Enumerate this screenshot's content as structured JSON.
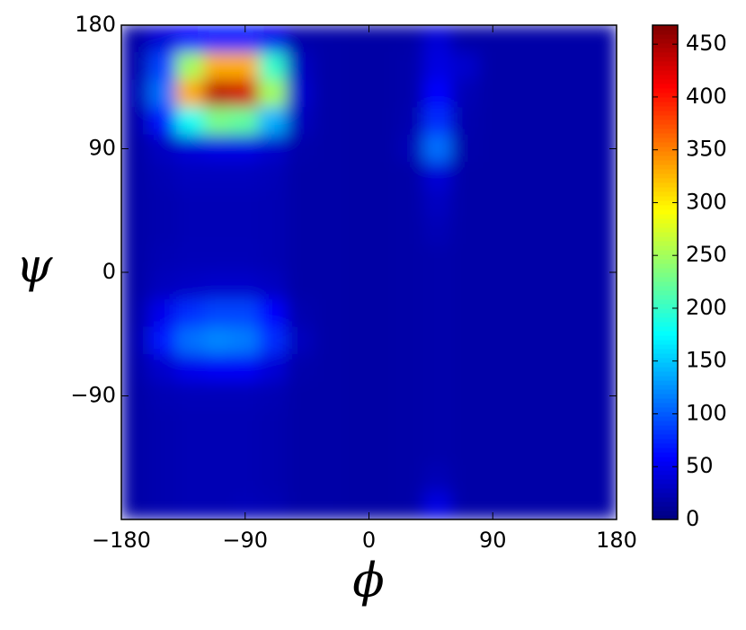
{
  "chart_data": {
    "type": "heatmap",
    "xlabel": "ϕ",
    "ylabel": "ψ",
    "colormap": "jet",
    "x": [
      -170,
      -150,
      -130,
      -110,
      -90,
      -70,
      -50,
      -30,
      -10,
      10,
      30,
      50,
      70,
      90,
      110,
      130,
      150,
      170
    ],
    "y": [
      170,
      150,
      130,
      110,
      90,
      70,
      50,
      30,
      10,
      -10,
      -30,
      -50,
      -70,
      -90,
      -110,
      -130,
      -150,
      -170
    ],
    "values": [
      [
        18,
        40,
        60,
        70,
        70,
        50,
        20,
        18,
        17,
        17,
        18,
        40,
        18,
        18,
        18,
        18,
        18,
        18
      ],
      [
        20,
        90,
        250,
        330,
        330,
        200,
        30,
        18,
        17,
        17,
        20,
        45,
        35,
        18,
        18,
        18,
        18,
        18
      ],
      [
        25,
        110,
        330,
        440,
        430,
        250,
        35,
        18,
        17,
        17,
        20,
        60,
        25,
        18,
        18,
        18,
        18,
        18
      ],
      [
        20,
        70,
        180,
        230,
        220,
        140,
        28,
        18,
        17,
        17,
        22,
        80,
        22,
        18,
        18,
        18,
        18,
        18
      ],
      [
        18,
        30,
        40,
        45,
        45,
        35,
        20,
        18,
        17,
        17,
        25,
        110,
        20,
        18,
        18,
        18,
        18,
        18
      ],
      [
        18,
        24,
        28,
        28,
        28,
        26,
        18,
        18,
        17,
        17,
        18,
        40,
        18,
        18,
        18,
        18,
        18,
        18
      ],
      [
        18,
        22,
        25,
        25,
        25,
        24,
        18,
        18,
        17,
        17,
        18,
        30,
        18,
        18,
        18,
        18,
        18,
        18
      ],
      [
        18,
        22,
        25,
        25,
        25,
        24,
        18,
        18,
        17,
        17,
        18,
        25,
        18,
        18,
        18,
        18,
        18,
        18
      ],
      [
        18,
        24,
        26,
        26,
        26,
        24,
        18,
        18,
        17,
        17,
        18,
        20,
        18,
        18,
        18,
        18,
        18,
        18
      ],
      [
        18,
        28,
        32,
        34,
        34,
        30,
        18,
        18,
        17,
        17,
        18,
        20,
        18,
        18,
        18,
        18,
        18,
        18
      ],
      [
        20,
        50,
        80,
        90,
        90,
        60,
        22,
        18,
        17,
        17,
        18,
        20,
        18,
        18,
        18,
        18,
        18,
        18
      ],
      [
        22,
        70,
        110,
        120,
        115,
        80,
        28,
        18,
        17,
        17,
        18,
        20,
        18,
        18,
        18,
        18,
        18,
        18
      ],
      [
        20,
        35,
        50,
        55,
        55,
        40,
        20,
        18,
        17,
        17,
        18,
        20,
        18,
        18,
        18,
        18,
        18,
        18
      ],
      [
        18,
        24,
        26,
        26,
        26,
        24,
        18,
        18,
        17,
        17,
        18,
        20,
        18,
        18,
        18,
        18,
        18,
        18
      ],
      [
        18,
        22,
        24,
        24,
        24,
        22,
        18,
        18,
        17,
        17,
        18,
        20,
        18,
        18,
        18,
        18,
        18,
        18
      ],
      [
        18,
        22,
        24,
        24,
        24,
        22,
        18,
        18,
        17,
        17,
        18,
        20,
        18,
        18,
        18,
        18,
        18,
        18
      ],
      [
        18,
        22,
        24,
        24,
        24,
        22,
        18,
        18,
        17,
        17,
        18,
        25,
        18,
        18,
        18,
        18,
        18,
        18
      ],
      [
        18,
        22,
        24,
        24,
        26,
        24,
        18,
        18,
        17,
        17,
        18,
        45,
        18,
        18,
        18,
        18,
        18,
        18
      ]
    ],
    "xlim": [
      -180,
      180
    ],
    "ylim": [
      -180,
      180
    ],
    "xticks": [
      {
        "value": -180,
        "label": "−180"
      },
      {
        "value": -90,
        "label": "−90"
      },
      0,
      90,
      180
    ],
    "yticks": [
      {
        "value": -90,
        "label": "−90"
      },
      0,
      90,
      180
    ],
    "zlim": [
      0,
      468
    ],
    "zticks": [
      0,
      50,
      100,
      150,
      200,
      250,
      300,
      350,
      400,
      450
    ]
  }
}
